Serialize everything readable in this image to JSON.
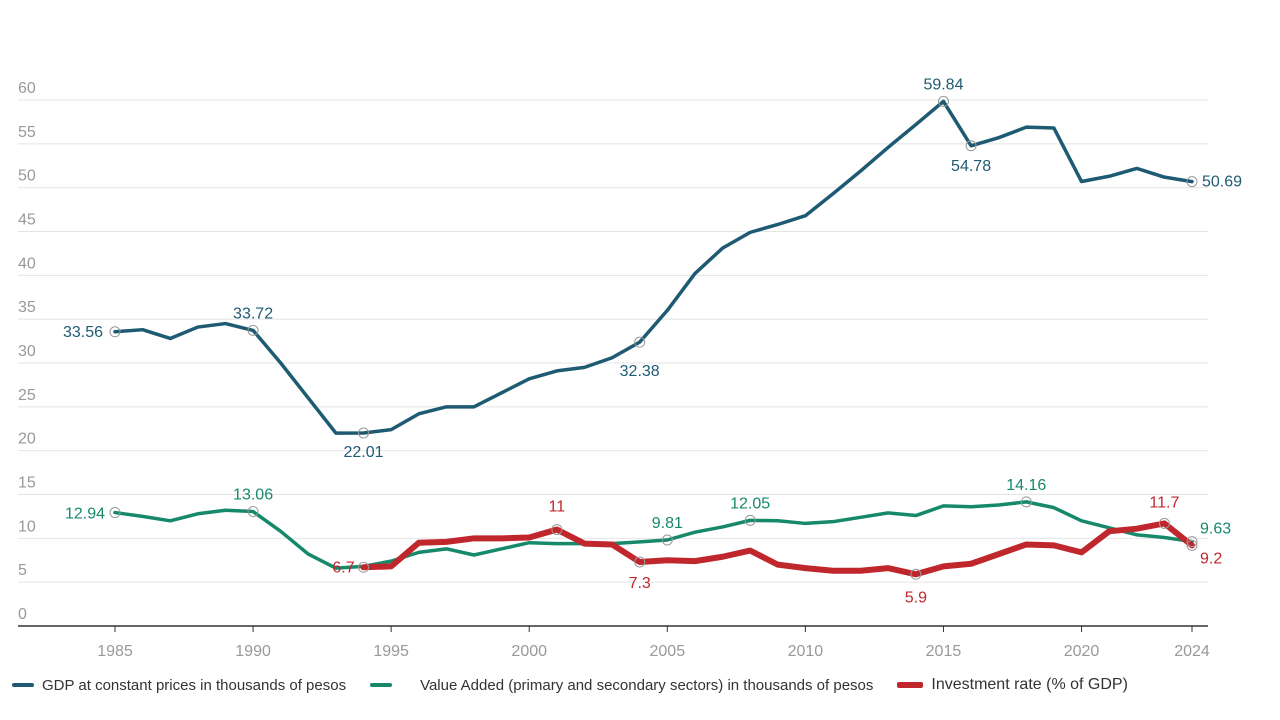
{
  "chart_data": {
    "type": "line",
    "title": "",
    "xlabel": "",
    "ylabel": "",
    "ylim": [
      0,
      60
    ],
    "yticks": [
      0,
      5,
      10,
      15,
      20,
      25,
      30,
      35,
      40,
      45,
      50,
      55,
      60
    ],
    "xticks": [
      1985,
      1990,
      1995,
      2000,
      2005,
      2010,
      2015,
      2020,
      2024
    ],
    "grid": true,
    "legend_position": "bottom",
    "x": [
      1985,
      1986,
      1987,
      1988,
      1989,
      1990,
      1991,
      1992,
      1993,
      1994,
      1995,
      1996,
      1997,
      1998,
      1999,
      2000,
      2001,
      2002,
      2003,
      2004,
      2005,
      2006,
      2007,
      2008,
      2009,
      2010,
      2011,
      2012,
      2013,
      2014,
      2015,
      2016,
      2017,
      2018,
      2019,
      2020,
      2021,
      2022,
      2023,
      2024
    ],
    "series": [
      {
        "name": "GDP at constant prices in thousands of pesos",
        "color": "#1e5b73",
        "values": [
          33.56,
          33.8,
          32.8,
          34.1,
          34.5,
          33.72,
          30.0,
          26.0,
          22.0,
          22.01,
          22.4,
          24.2,
          25.0,
          25.0,
          26.6,
          28.2,
          29.1,
          29.5,
          30.6,
          32.38,
          36.0,
          40.2,
          43.1,
          44.9,
          45.8,
          46.8,
          49.3,
          51.9,
          54.6,
          57.2,
          59.84,
          54.78,
          55.7,
          56.9,
          56.8,
          50.7,
          51.3,
          52.2,
          51.2,
          50.69
        ],
        "labels": [
          {
            "year": 1985,
            "text": "33.56"
          },
          {
            "year": 1990,
            "text": "33.72"
          },
          {
            "year": 1994,
            "text": "22.01"
          },
          {
            "year": 2004,
            "text": "32.38"
          },
          {
            "year": 2015,
            "text": "59.84"
          },
          {
            "year": 2016,
            "text": "54.78"
          },
          {
            "year": 2024,
            "text": "50.69"
          }
        ]
      },
      {
        "name": "Value Added (primary and secondary sectors) in thousands of pesos",
        "color": "#16896b",
        "values": [
          12.94,
          12.5,
          12.0,
          12.8,
          13.2,
          13.06,
          10.8,
          8.2,
          6.6,
          6.8,
          7.4,
          8.4,
          8.8,
          8.1,
          8.8,
          9.5,
          9.4,
          9.4,
          9.4,
          9.6,
          9.81,
          10.7,
          11.3,
          12.05,
          12.0,
          11.7,
          11.9,
          12.4,
          12.9,
          12.6,
          13.7,
          13.6,
          13.8,
          14.16,
          13.5,
          12.0,
          11.2,
          10.4,
          10.1,
          9.63
        ],
        "labels": [
          {
            "year": 1985,
            "text": "12.94"
          },
          {
            "year": 1990,
            "text": "13.06"
          },
          {
            "year": 2005,
            "text": "9.81"
          },
          {
            "year": 2008,
            "text": "12.05"
          },
          {
            "year": 2018,
            "text": "14.16"
          },
          {
            "year": 2024,
            "text": "9.63"
          }
        ]
      },
      {
        "name": "Investment rate (% of GDP)",
        "color": "#c0272d",
        "values": [
          null,
          null,
          null,
          null,
          null,
          null,
          null,
          null,
          null,
          6.7,
          6.8,
          9.5,
          9.6,
          10.0,
          10.0,
          10.1,
          11,
          9.4,
          9.3,
          7.3,
          7.5,
          7.4,
          7.9,
          8.6,
          7.0,
          6.6,
          6.3,
          6.3,
          6.6,
          5.9,
          6.8,
          7.1,
          8.2,
          9.3,
          9.2,
          8.4,
          10.8,
          11.1,
          11.7,
          9.2
        ],
        "labels": [
          {
            "year": 1994,
            "text": "6.7"
          },
          {
            "year": 2001,
            "text": "11"
          },
          {
            "year": 2004,
            "text": "7.3"
          },
          {
            "year": 2014,
            "text": "5.9"
          },
          {
            "year": 2023,
            "text": "11.7"
          },
          {
            "year": 2024,
            "text": "9.2"
          }
        ]
      }
    ]
  }
}
